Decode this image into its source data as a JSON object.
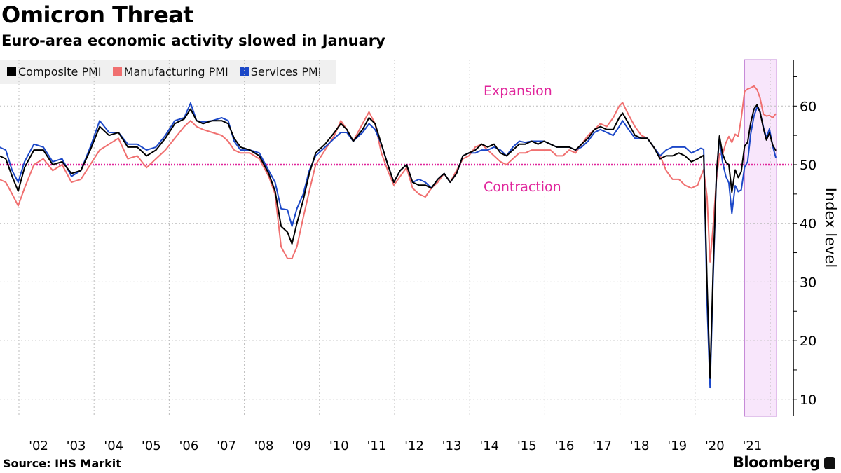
{
  "chart_data": {
    "type": "line",
    "title": "Omicron Threat",
    "subtitle": "Euro-area economic activity slowed in January",
    "ylabel": "Index level",
    "xlabel": "",
    "ylim": [
      7,
      68
    ],
    "y_ticks": [
      10,
      20,
      30,
      40,
      50,
      60
    ],
    "x_tick_labels": [
      "'02",
      "'03",
      "'04",
      "'05",
      "'06",
      "'07",
      "'08",
      "'09",
      "'10",
      "'11",
      "'12",
      "'13",
      "'14",
      "'15",
      "'16",
      "'17",
      "'18",
      "'19",
      "'20",
      "'21"
    ],
    "grid": true,
    "legend_position": "top-left",
    "reference_line": {
      "value": 50,
      "color": "#e0259b"
    },
    "annotations": [
      {
        "text": "Expansion",
        "color": "#e0259b"
      },
      {
        "text": "Contraction",
        "color": "#e0259b"
      }
    ],
    "highlight_band": {
      "start": 2021.17,
      "end": 2022.02,
      "fill": "#f8e6fb",
      "stroke": "#c58ad8"
    },
    "series_colors": {
      "composite": "#000000",
      "manufacturing": "#f07070",
      "services": "#1c48c8"
    },
    "series_names": [
      "Composite PMI",
      "Manufacturing PMI",
      "Services PMI"
    ],
    "columns": [
      "year",
      "composite",
      "manufacturing",
      "services"
    ],
    "rows": [
      [
        2001.33,
        51.5,
        47.5,
        53
      ],
      [
        2001.5,
        51,
        47,
        52.5
      ],
      [
        2001.67,
        48,
        45,
        49
      ],
      [
        2001.83,
        45.5,
        43,
        47
      ],
      [
        2002.0,
        49.5,
        46,
        50.5
      ],
      [
        2002.25,
        52.5,
        50,
        53.5
      ],
      [
        2002.5,
        52.5,
        51,
        53
      ],
      [
        2002.75,
        50,
        49,
        50.5
      ],
      [
        2003.0,
        50.5,
        50,
        51
      ],
      [
        2003.25,
        48.5,
        47,
        48
      ],
      [
        2003.5,
        49,
        47.5,
        49
      ],
      [
        2003.75,
        52.5,
        50,
        53
      ],
      [
        2004.0,
        56.5,
        52.5,
        57.5
      ],
      [
        2004.25,
        55,
        53.5,
        55.5
      ],
      [
        2004.5,
        55.5,
        54.5,
        55.5
      ],
      [
        2004.75,
        53,
        51,
        53.5
      ],
      [
        2005.0,
        53,
        51.5,
        53.5
      ],
      [
        2005.25,
        51.5,
        49.5,
        52.5
      ],
      [
        2005.5,
        52.5,
        51,
        53
      ],
      [
        2005.75,
        54.5,
        52.5,
        55
      ],
      [
        2006.0,
        57,
        54.5,
        57.5
      ],
      [
        2006.25,
        57.8,
        56.5,
        58
      ],
      [
        2006.42,
        59.5,
        57.5,
        60.5
      ],
      [
        2006.58,
        57.5,
        56.5,
        57.5
      ],
      [
        2006.75,
        57,
        56,
        57.3
      ],
      [
        2007.0,
        57.5,
        55.5,
        57.5
      ],
      [
        2007.25,
        57.5,
        55,
        58
      ],
      [
        2007.42,
        57,
        54,
        57.5
      ],
      [
        2007.58,
        54.5,
        52.5,
        54
      ],
      [
        2007.75,
        53,
        52,
        52.5
      ],
      [
        2008.0,
        52.5,
        52,
        52.5
      ],
      [
        2008.25,
        51.5,
        51,
        52
      ],
      [
        2008.5,
        48.5,
        48,
        49
      ],
      [
        2008.67,
        45.5,
        45,
        47
      ],
      [
        2008.83,
        39.5,
        36,
        42.5
      ],
      [
        2009.0,
        38.5,
        34,
        42.3
      ],
      [
        2009.12,
        36.5,
        34,
        39.5
      ],
      [
        2009.25,
        40,
        36,
        42.5
      ],
      [
        2009.42,
        44,
        41,
        45
      ],
      [
        2009.58,
        48.5,
        45.5,
        49
      ],
      [
        2009.75,
        52,
        50,
        51.5
      ],
      [
        2010.0,
        53.5,
        52.5,
        53
      ],
      [
        2010.25,
        55.5,
        55,
        54.5
      ],
      [
        2010.42,
        57,
        57.5,
        55.5
      ],
      [
        2010.58,
        56,
        56,
        55.5
      ],
      [
        2010.75,
        54,
        54,
        54
      ],
      [
        2011.0,
        56,
        57,
        55.5
      ],
      [
        2011.17,
        58,
        59,
        57
      ],
      [
        2011.33,
        57,
        57,
        56
      ],
      [
        2011.5,
        53.5,
        52,
        53.5
      ],
      [
        2011.67,
        50,
        49,
        50
      ],
      [
        2011.83,
        47,
        46.5,
        47
      ],
      [
        2012.0,
        49,
        48,
        49
      ],
      [
        2012.17,
        50,
        49.5,
        50
      ],
      [
        2012.33,
        47,
        46,
        47
      ],
      [
        2012.5,
        46.5,
        45,
        47.5
      ],
      [
        2012.67,
        46.5,
        44.5,
        47
      ],
      [
        2012.83,
        46,
        46,
        46
      ],
      [
        2013.0,
        47.5,
        47,
        47.5
      ],
      [
        2013.17,
        48.5,
        48.5,
        48.5
      ],
      [
        2013.33,
        47,
        47,
        47
      ],
      [
        2013.5,
        48.5,
        49,
        48.5
      ],
      [
        2013.67,
        51.5,
        51,
        51.5
      ],
      [
        2013.83,
        52,
        51.5,
        52
      ],
      [
        2014.0,
        52.5,
        53,
        52
      ],
      [
        2014.17,
        53.5,
        53.5,
        52.5
      ],
      [
        2014.33,
        53,
        52.5,
        52.5
      ],
      [
        2014.5,
        53.5,
        51.5,
        53
      ],
      [
        2014.67,
        52,
        50.5,
        52.5
      ],
      [
        2014.83,
        51.5,
        50,
        51.5
      ],
      [
        2015.0,
        52.5,
        51,
        53
      ],
      [
        2015.17,
        53.5,
        52,
        54
      ],
      [
        2015.33,
        53.5,
        52,
        53.8
      ],
      [
        2015.5,
        54,
        52.5,
        54
      ],
      [
        2015.67,
        53.5,
        52.5,
        54
      ],
      [
        2015.83,
        54,
        52.5,
        54
      ],
      [
        2016.0,
        53.5,
        52.5,
        53.5
      ],
      [
        2016.17,
        53,
        51.5,
        53
      ],
      [
        2016.33,
        53,
        51.5,
        53
      ],
      [
        2016.5,
        53,
        52.5,
        53
      ],
      [
        2016.67,
        52.5,
        52,
        52.5
      ],
      [
        2016.83,
        53.5,
        53.5,
        53
      ],
      [
        2017.0,
        54.5,
        55,
        54
      ],
      [
        2017.17,
        56,
        56,
        55.5
      ],
      [
        2017.33,
        56.5,
        57,
        56
      ],
      [
        2017.5,
        56,
        56.5,
        55.5
      ],
      [
        2017.67,
        56,
        58,
        55
      ],
      [
        2017.83,
        58,
        60,
        56.5
      ],
      [
        2017.92,
        58.8,
        60.6,
        57.5
      ],
      [
        2018.08,
        57,
        58.5,
        56
      ],
      [
        2018.25,
        55,
        56.5,
        54.5
      ],
      [
        2018.42,
        54.5,
        55,
        54.5
      ],
      [
        2018.58,
        54.5,
        54.5,
        54.5
      ],
      [
        2018.75,
        53,
        53,
        53
      ],
      [
        2018.92,
        51,
        51.5,
        51.5
      ],
      [
        2019.08,
        51.5,
        49,
        52.5
      ],
      [
        2019.25,
        51.5,
        47.5,
        53
      ],
      [
        2019.42,
        52,
        47.5,
        53
      ],
      [
        2019.58,
        51.5,
        46.5,
        53
      ],
      [
        2019.75,
        50.5,
        46,
        52
      ],
      [
        2019.92,
        51,
        46.5,
        52.5
      ],
      [
        2020.0,
        51.3,
        47.9,
        52.8
      ],
      [
        2020.08,
        51.6,
        49.2,
        52.6
      ],
      [
        2020.17,
        29.7,
        44.5,
        26.4
      ],
      [
        2020.25,
        13.6,
        33.4,
        12
      ],
      [
        2020.33,
        31.9,
        39.4,
        30.5
      ],
      [
        2020.42,
        48.5,
        47.4,
        48.3
      ],
      [
        2020.5,
        54.9,
        51.8,
        54.7
      ],
      [
        2020.58,
        51.9,
        51.7,
        50.5
      ],
      [
        2020.67,
        50.4,
        53.7,
        48
      ],
      [
        2020.75,
        50,
        54.8,
        46.9
      ],
      [
        2020.83,
        45.3,
        53.8,
        41.7
      ],
      [
        2020.92,
        49.1,
        55.2,
        46.4
      ],
      [
        2021.0,
        47.8,
        54.8,
        45.4
      ],
      [
        2021.08,
        48.8,
        57.9,
        45.7
      ],
      [
        2021.17,
        53.2,
        62.5,
        49.6
      ],
      [
        2021.25,
        53.8,
        62.9,
        50.5
      ],
      [
        2021.33,
        57.1,
        63.1,
        55.2
      ],
      [
        2021.42,
        59.5,
        63.4,
        58.3
      ],
      [
        2021.5,
        60.2,
        62.8,
        59.8
      ],
      [
        2021.58,
        59,
        61.4,
        59
      ],
      [
        2021.67,
        56.2,
        58.6,
        56.4
      ],
      [
        2021.75,
        54.2,
        58.3,
        54.6
      ],
      [
        2021.83,
        55.4,
        58.4,
        56.1
      ],
      [
        2021.92,
        53.3,
        58,
        53.1
      ],
      [
        2022.0,
        52.4,
        58.7,
        51.2
      ]
    ]
  },
  "footer": {
    "source": "Source: IHS Markit",
    "brand": "Bloomberg"
  }
}
